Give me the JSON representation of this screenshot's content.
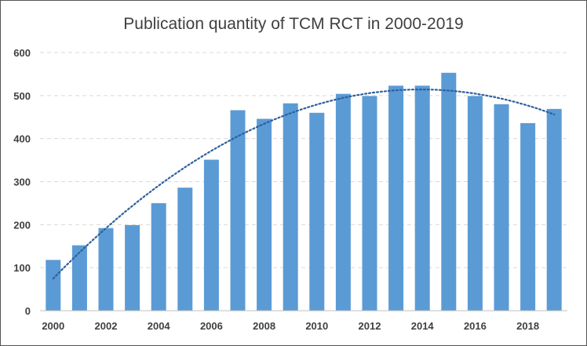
{
  "chart_data": {
    "type": "bar",
    "title": "Publication quantity of TCM RCT in 2000-2019",
    "xlabel": "",
    "ylabel": "",
    "categories": [
      "2000",
      "2001",
      "2002",
      "2003",
      "2004",
      "2005",
      "2006",
      "2007",
      "2008",
      "2009",
      "2010",
      "2011",
      "2012",
      "2013",
      "2014",
      "2015",
      "2016",
      "2017",
      "2018",
      "2019"
    ],
    "x_tick_labels": [
      "2000",
      "2002",
      "2004",
      "2006",
      "2008",
      "2010",
      "2012",
      "2014",
      "2016",
      "2018"
    ],
    "values": [
      118,
      152,
      192,
      199,
      250,
      286,
      351,
      466,
      446,
      482,
      460,
      504,
      499,
      523,
      523,
      553,
      499,
      480,
      436,
      469
    ],
    "ylim": [
      0,
      600
    ],
    "y_ticks": [
      0,
      100,
      200,
      300,
      400,
      500,
      600
    ],
    "y_tick_labels": [
      "0",
      "100",
      "200",
      "300",
      "400",
      "500",
      "600"
    ],
    "grid": true,
    "legend": "none",
    "trendline": {
      "type": "polynomial",
      "order": 2,
      "style": "dotted"
    },
    "bar_color": "#5b9bd5",
    "trend_color": "#2e5f9e",
    "grid_color": "#d9d9d9"
  }
}
